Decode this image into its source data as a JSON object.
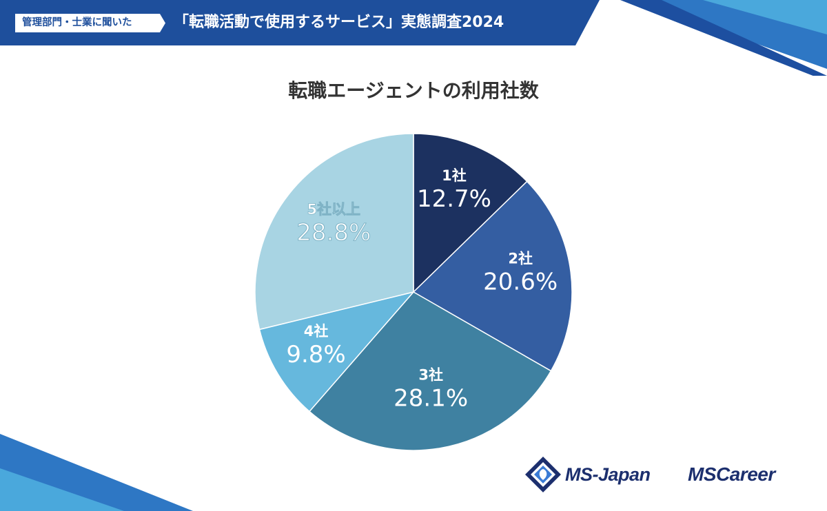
{
  "header": {
    "tag": "管理部門・士業に聞いた",
    "title": "「転職活動で使用するサービス」実態調査2024"
  },
  "colors": {
    "banner": "#1e4f9c",
    "slices": [
      "#1c3160",
      "#345ea2",
      "#3f81a1",
      "#66b8dd",
      "#a8d4e3"
    ]
  },
  "chart_data": {
    "type": "pie",
    "title": "転職エージェントの利用社数",
    "categories": [
      "1社",
      "2社",
      "3社",
      "4社",
      "5社以上"
    ],
    "values": [
      12.7,
      20.6,
      28.1,
      9.8,
      28.8
    ],
    "value_labels": [
      "12.7%",
      "20.6%",
      "28.1%",
      "9.8%",
      "28.8%"
    ],
    "start": "12 o'clock",
    "direction": "clockwise"
  },
  "logos": {
    "japan": "MS-Japan",
    "career": "MSCareer"
  }
}
